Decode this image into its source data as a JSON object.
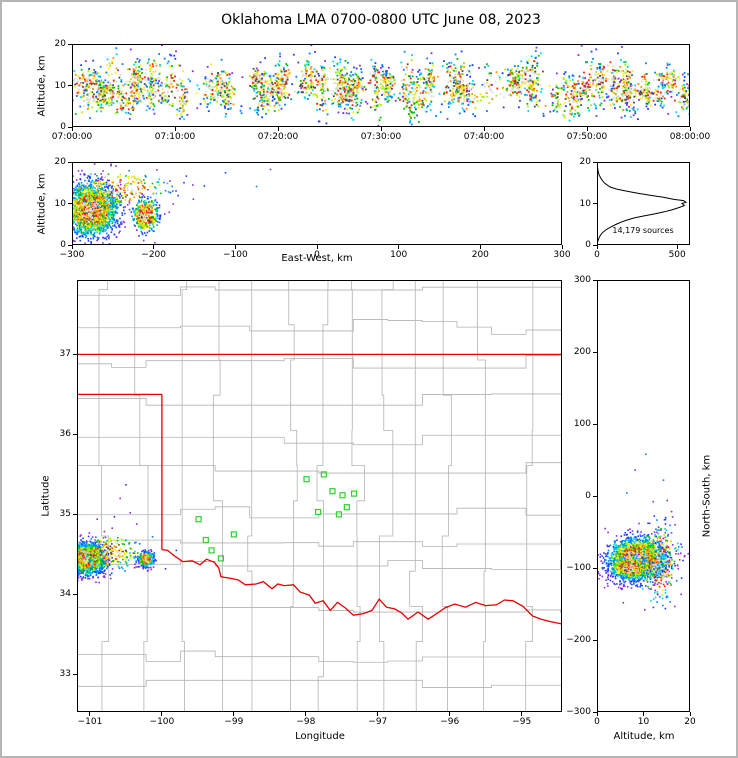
{
  "title": "Oklahoma LMA 0700-0800 UTC June 08, 2023",
  "colors": {
    "figure_border": "#b5b5b5",
    "axis": "#000000",
    "density_scale": [
      "#8a2be2",
      "#1e3cff",
      "#0080ff",
      "#00d0ff",
      "#00c000",
      "#aaee00",
      "#ffee00",
      "#ff9000",
      "#ff2000",
      "#4a4a4a",
      "#dddddd"
    ]
  },
  "chart_data": [
    {
      "id": "time-height",
      "type": "scatter-streaks",
      "ylabel": "Altitude, km",
      "xlim": [
        0,
        3600
      ],
      "ylim": [
        0,
        20
      ],
      "xticks": {
        "values": [
          0,
          600,
          1200,
          1800,
          2400,
          3000,
          3600
        ],
        "labels": [
          "07:00:00",
          "07:10:00",
          "07:20:00",
          "07:30:00",
          "07:40:00",
          "07:50:00",
          "08:00:00"
        ]
      },
      "yticks": {
        "values": [
          0,
          10,
          20
        ],
        "labels": [
          "0",
          "10",
          "20"
        ]
      },
      "synthesis": {
        "streak_count": 135,
        "time_range": [
          15,
          3585
        ],
        "alt_center_range": [
          6.5,
          12.5
        ],
        "alt_spread_range": [
          1.1,
          3.2
        ],
        "points_per_streak": [
          4,
          42
        ],
        "background_points": 240,
        "point_size": 1.8,
        "seed": 11
      }
    },
    {
      "id": "ew-height",
      "type": "scatter-clusters",
      "xlabel": "East-West, km",
      "ylabel": "Altitude, km",
      "xlim": [
        -300,
        300
      ],
      "ylim": [
        0,
        20
      ],
      "xticks": {
        "values": [
          -300,
          -200,
          -100,
          0,
          100,
          200,
          300
        ],
        "labels": [
          "−300",
          "−200",
          "−100",
          "0",
          "100",
          "200",
          "300"
        ]
      },
      "yticks": {
        "values": [
          0,
          10,
          20
        ],
        "labels": [
          "0",
          "10",
          "20"
        ]
      },
      "clusters": [
        {
          "cx": -276,
          "cy": 8.6,
          "sx": 16,
          "sy": 3.1,
          "n": 2100
        },
        {
          "cx": -210,
          "cy": 7.2,
          "sx": 8,
          "sy": 2.1,
          "n": 420
        },
        {
          "cx": -245,
          "cy": 13.5,
          "sx": 32,
          "sy": 2.2,
          "n": 240
        }
      ],
      "strays": [
        [
          -160,
          16.6
        ],
        [
          -138,
          14.2
        ],
        [
          -112,
          17.4
        ],
        [
          -74,
          14.1
        ],
        [
          -57,
          18.2
        ],
        [
          -180,
          15.4
        ],
        [
          -196,
          18.1
        ],
        [
          -230,
          17.9
        ]
      ],
      "point_size": 1.6,
      "seed": 7
    },
    {
      "id": "alt-histogram",
      "type": "profile-line",
      "annotation": "14,179 sources",
      "xlim": [
        0,
        580
      ],
      "ylim": [
        0,
        20
      ],
      "xticks": {
        "values": [
          0,
          500
        ],
        "labels": [
          "0",
          "500"
        ]
      },
      "yticks": {
        "values": [
          0,
          10,
          20
        ],
        "labels": [
          "0",
          "10",
          "20"
        ]
      },
      "altitudes": [
        0,
        0.5,
        1,
        1.5,
        2,
        2.5,
        3,
        3.5,
        4,
        4.5,
        5,
        5.5,
        6,
        6.5,
        7,
        7.5,
        8,
        8.5,
        9,
        9.5,
        10,
        10.3,
        10.7,
        11,
        11.5,
        12,
        12.5,
        13,
        13.5,
        14,
        15,
        16,
        17,
        18,
        19,
        20
      ],
      "counts": [
        1,
        3,
        6,
        10,
        16,
        24,
        35,
        50,
        70,
        95,
        120,
        150,
        185,
        230,
        290,
        360,
        420,
        470,
        510,
        545,
        530,
        555,
        540,
        480,
        415,
        330,
        250,
        180,
        120,
        80,
        45,
        25,
        12,
        6,
        2,
        1
      ]
    },
    {
      "id": "map",
      "type": "map",
      "xlabel": "Longitude",
      "ylabel": "Latitude",
      "xlim": [
        -101.18,
        -94.44
      ],
      "ylim": [
        32.53,
        37.93
      ],
      "xticks": {
        "values": [
          -101,
          -100,
          -99,
          -98,
          -97,
          -96,
          -95
        ],
        "labels": [
          "−101",
          "−100",
          "−99",
          "−98",
          "−97",
          "−96",
          "−95"
        ]
      },
      "yticks": {
        "values": [
          33,
          34,
          35,
          36,
          37
        ],
        "labels": [
          "33",
          "34",
          "35",
          "36",
          "37"
        ]
      },
      "county_grid": {
        "color": "#b3b3b3",
        "lon_step": 0.48,
        "lat_step": 0.44,
        "jitter": 0.09,
        "seed": 3
      },
      "state_border": {
        "color": "#e60000",
        "segments": [
          [
            [
              -101.18,
              37
            ],
            [
              -94.44,
              37
            ]
          ],
          [
            [
              -101.18,
              36.5
            ],
            [
              -100,
              36.5
            ]
          ],
          [
            [
              -100,
              36.5
            ],
            [
              -100,
              34.56
            ]
          ],
          [
            [
              -100.0,
              34.56
            ],
            [
              -99.92,
              34.55
            ],
            [
              -99.84,
              34.49
            ],
            [
              -99.71,
              34.41
            ],
            [
              -99.58,
              34.42
            ],
            [
              -99.47,
              34.37
            ],
            [
              -99.38,
              34.44
            ],
            [
              -99.27,
              34.4
            ],
            [
              -99.21,
              34.33
            ],
            [
              -99.18,
              34.22
            ],
            [
              -99.04,
              34.2
            ],
            [
              -98.94,
              34.18
            ],
            [
              -98.84,
              34.12
            ],
            [
              -98.69,
              34.13
            ],
            [
              -98.59,
              34.16
            ],
            [
              -98.47,
              34.07
            ],
            [
              -98.39,
              34.13
            ],
            [
              -98.3,
              34.11
            ],
            [
              -98.17,
              34.12
            ],
            [
              -98.08,
              34.03
            ],
            [
              -97.95,
              33.99
            ],
            [
              -97.87,
              33.89
            ],
            [
              -97.76,
              33.92
            ],
            [
              -97.66,
              33.8
            ],
            [
              -97.56,
              33.9
            ],
            [
              -97.45,
              33.83
            ],
            [
              -97.34,
              33.74
            ],
            [
              -97.2,
              33.76
            ],
            [
              -97.08,
              33.8
            ],
            [
              -96.98,
              33.94
            ],
            [
              -96.88,
              33.84
            ],
            [
              -96.77,
              33.82
            ],
            [
              -96.67,
              33.77
            ],
            [
              -96.58,
              33.69
            ],
            [
              -96.44,
              33.78
            ],
            [
              -96.3,
              33.69
            ],
            [
              -96.18,
              33.76
            ],
            [
              -96.07,
              33.83
            ],
            [
              -95.93,
              33.88
            ],
            [
              -95.78,
              33.84
            ],
            [
              -95.64,
              33.9
            ],
            [
              -95.5,
              33.86
            ],
            [
              -95.35,
              33.87
            ],
            [
              -95.24,
              33.93
            ],
            [
              -95.12,
              33.92
            ],
            [
              -94.98,
              33.85
            ],
            [
              -94.85,
              33.73
            ],
            [
              -94.73,
              33.69
            ],
            [
              -94.6,
              33.66
            ],
            [
              -94.44,
              33.63
            ]
          ]
        ]
      },
      "stations": {
        "color": "#2fd02f",
        "size": 5,
        "coords": [
          [
            -97.99,
            35.44
          ],
          [
            -97.75,
            35.5
          ],
          [
            -97.63,
            35.29
          ],
          [
            -97.49,
            35.24
          ],
          [
            -97.33,
            35.26
          ],
          [
            -97.83,
            35.03
          ],
          [
            -97.54,
            35.0
          ],
          [
            -97.43,
            35.09
          ],
          [
            -99.49,
            34.94
          ],
          [
            -99.39,
            34.68
          ],
          [
            -99.31,
            34.55
          ],
          [
            -99.18,
            34.45
          ],
          [
            -99.0,
            34.75
          ]
        ]
      },
      "clusters": [
        {
          "cx": -101.04,
          "cy": 34.45,
          "sx": 0.125,
          "sy": 0.095,
          "n": 1900
        },
        {
          "cx": -100.22,
          "cy": 34.44,
          "sx": 0.055,
          "sy": 0.045,
          "n": 330
        },
        {
          "cx": -100.72,
          "cy": 34.52,
          "sx": 0.2,
          "sy": 0.11,
          "n": 280
        }
      ],
      "strays": [
        [
          -100.5,
          35.37
        ],
        [
          -100.44,
          35.02
        ],
        [
          -100.66,
          34.97
        ],
        [
          -100.9,
          34.94
        ],
        [
          -99.8,
          34.55
        ],
        [
          -100.13,
          34.72
        ],
        [
          -99.95,
          34.32
        ],
        [
          -100.35,
          34.88
        ],
        [
          -100.58,
          35.2
        ]
      ],
      "point_size": 1.6,
      "seed": 21
    },
    {
      "id": "ns-height",
      "type": "scatter-clusters",
      "xlabel": "Altitude, km",
      "ylabel": "North-South, km",
      "xlim": [
        0,
        20
      ],
      "ylim": [
        -300,
        300
      ],
      "xticks": {
        "values": [
          0,
          10,
          20
        ],
        "labels": [
          "0",
          "10",
          "20"
        ]
      },
      "yticks": {
        "values": [
          -300,
          -200,
          -100,
          0,
          100,
          200,
          300
        ],
        "labels": [
          "−300",
          "−200",
          "−100",
          "0",
          "100",
          "200",
          "300"
        ]
      },
      "clusters": [
        {
          "cx": 8.6,
          "cy": -88,
          "sx": 3.1,
          "sy": 15,
          "n": 2100
        },
        {
          "cx": 7.2,
          "cy": -100,
          "sx": 2.1,
          "sy": 8,
          "n": 420
        },
        {
          "cx": 13.5,
          "cy": -95,
          "sx": 2.2,
          "sy": 28,
          "n": 240
        }
      ],
      "strays": [
        [
          10.5,
          58
        ],
        [
          8.2,
          36
        ],
        [
          12.1,
          -8
        ],
        [
          14.3,
          22
        ],
        [
          6.4,
          4
        ],
        [
          16.8,
          -40
        ]
      ],
      "point_size": 1.6,
      "seed": 13
    }
  ]
}
